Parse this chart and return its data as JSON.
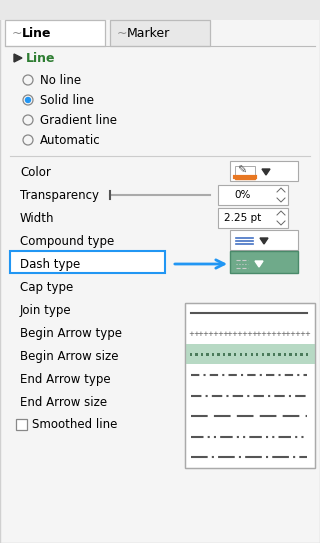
{
  "title_tab1": "Line",
  "title_tab2": "Marker",
  "section_label": "Line",
  "radio_options": [
    "No line",
    "Solid line",
    "Gradient line",
    "Automatic"
  ],
  "radio_selected": 1,
  "fields": [
    {
      "label": "Color",
      "has_color_btn": true
    },
    {
      "label": "Transparency",
      "has_slider": true,
      "value": "0%"
    },
    {
      "label": "Width",
      "value": "2.25 pt"
    },
    {
      "label": "Compound type",
      "has_icon": "lines"
    },
    {
      "label": "Dash type",
      "highlighted": true,
      "has_dropdown": true
    },
    {
      "label": "Cap type"
    },
    {
      "label": "Join type"
    },
    {
      "label": "Begin Arrow type"
    },
    {
      "label": "Begin Arrow size"
    },
    {
      "label": "End Arrow type",
      "has_arrow_icon": true
    },
    {
      "label": "End Arrow size",
      "has_icon": "lines"
    }
  ],
  "smoothed_line": "Smoothed line",
  "bg_color": "#f5f5f5",
  "panel_bg": "#ffffff",
  "tab_active_color": "#ffffff",
  "section_color": "#2e7d32",
  "highlight_color": "#5b9bd5",
  "dropdown_bg": "#6faa8a",
  "dropdown_panel_bg": "#ffffff",
  "arrow_color": "#2196F3",
  "dash_rows": [
    {
      "type": "solid",
      "color": "#555555"
    },
    {
      "type": "dots_plus",
      "color": "#555555"
    },
    {
      "type": "dots_square_selected",
      "color": "#555555",
      "selected": true
    },
    {
      "type": "dash_dot",
      "color": "#555555"
    },
    {
      "type": "dash_dot2",
      "color": "#555555"
    },
    {
      "type": "long_dash",
      "color": "#555555"
    },
    {
      "type": "dash_dot_dot",
      "color": "#555555"
    },
    {
      "type": "long_dash_dot",
      "color": "#555555"
    }
  ]
}
